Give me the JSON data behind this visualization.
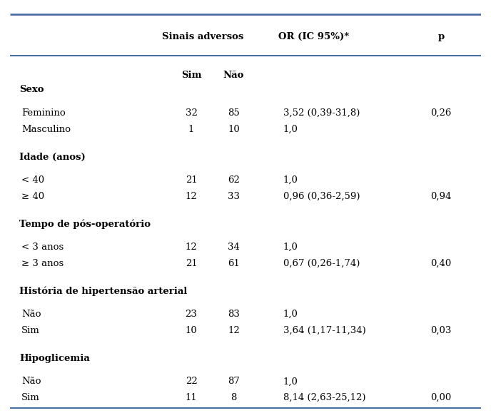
{
  "header_col1": "Sinais adversos",
  "header_col2": "OR (IC 95%)*",
  "header_col3": "p",
  "subheader_sim": "Sim",
  "subheader_nao": "Não",
  "line_color": "#4a6fa5",
  "background_color": "#ffffff",
  "rows": [
    {
      "type": "section",
      "label": "Sexo",
      "sim": "",
      "nao": "",
      "or": "",
      "p": ""
    },
    {
      "type": "blank"
    },
    {
      "type": "data",
      "label": "Feminino",
      "sim": "32",
      "nao": "85",
      "or": "3,52 (0,39-31,8)",
      "p": "0,26"
    },
    {
      "type": "data",
      "label": "Masculino",
      "sim": "1",
      "nao": "10",
      "or": "1,0",
      "p": ""
    },
    {
      "type": "blank"
    },
    {
      "type": "section",
      "label": "Idade (anos)",
      "sim": "",
      "nao": "",
      "or": "",
      "p": ""
    },
    {
      "type": "blank"
    },
    {
      "type": "data",
      "label": "< 40",
      "sim": "21",
      "nao": "62",
      "or": "1,0",
      "p": ""
    },
    {
      "type": "data",
      "label": "≥ 40",
      "sim": "12",
      "nao": "33",
      "or": "0,96 (0,36-2,59)",
      "p": "0,94"
    },
    {
      "type": "blank"
    },
    {
      "type": "section",
      "label": "Tempo de pós-operatório",
      "sim": "",
      "nao": "",
      "or": "",
      "p": ""
    },
    {
      "type": "blank"
    },
    {
      "type": "data",
      "label": "< 3 anos",
      "sim": "12",
      "nao": "34",
      "or": "1,0",
      "p": ""
    },
    {
      "type": "data",
      "label": "≥ 3 anos",
      "sim": "21",
      "nao": "61",
      "or": "0,67 (0,26-1,74)",
      "p": "0,40"
    },
    {
      "type": "blank"
    },
    {
      "type": "section",
      "label": "História de hipertensão arterial",
      "sim": "",
      "nao": "",
      "or": "",
      "p": ""
    },
    {
      "type": "blank"
    },
    {
      "type": "data",
      "label": "Não",
      "sim": "23",
      "nao": "83",
      "or": "1,0",
      "p": ""
    },
    {
      "type": "data",
      "label": "Sim",
      "sim": "10",
      "nao": "12",
      "or": "3,64 (1,17-11,34)",
      "p": "0,03"
    },
    {
      "type": "blank"
    },
    {
      "type": "section",
      "label": "Hipoglicemia",
      "sim": "",
      "nao": "",
      "or": "",
      "p": ""
    },
    {
      "type": "blank"
    },
    {
      "type": "data",
      "label": "Não",
      "sim": "22",
      "nao": "87",
      "or": "1,0",
      "p": ""
    },
    {
      "type": "data",
      "label": "Sim",
      "sim": "11",
      "nao": "8",
      "or": "8,14 (2,63-25,12)",
      "p": "0,00"
    }
  ],
  "col_x": {
    "label": 0.02,
    "sim": 0.385,
    "nao": 0.475,
    "or": 0.575,
    "p": 0.875
  },
  "figsize": [
    6.88,
    5.86
  ],
  "dpi": 100,
  "font_size": 9.5
}
